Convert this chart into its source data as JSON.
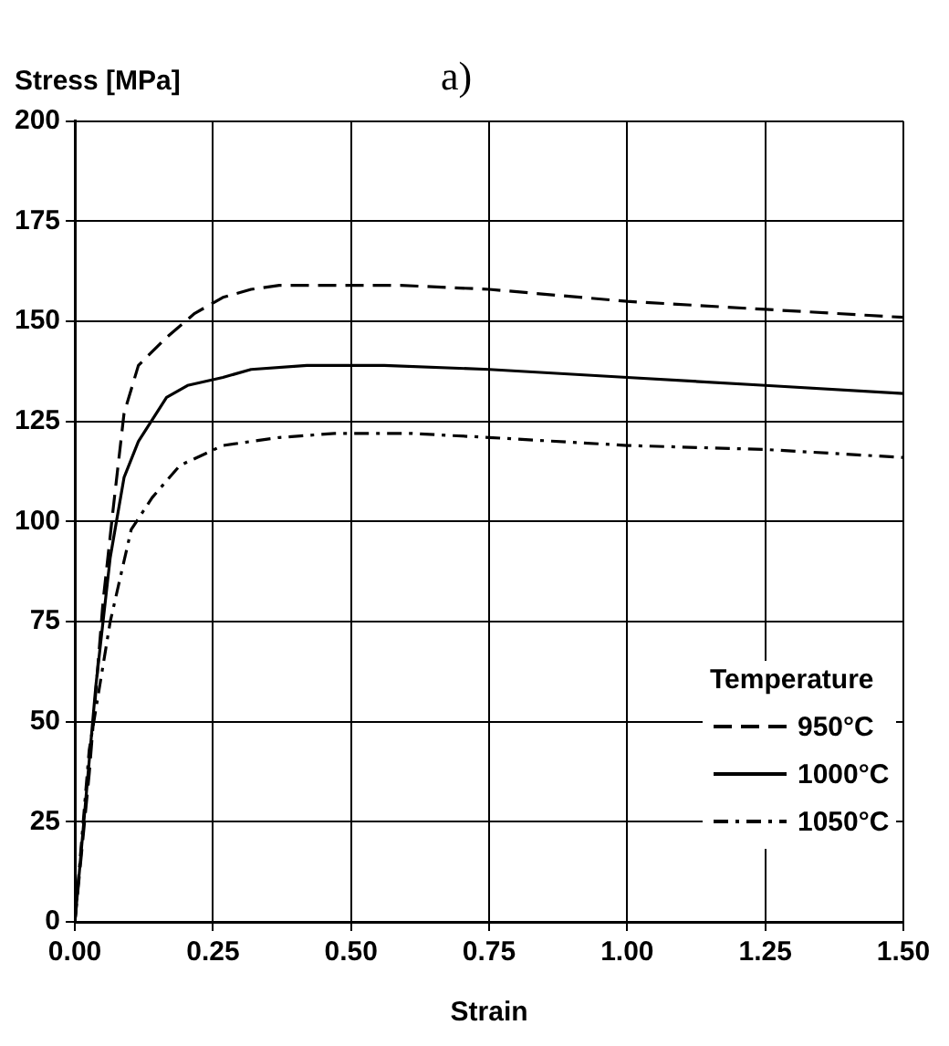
{
  "chart_data": {
    "type": "line",
    "title": "a)",
    "xlabel": "Strain",
    "ylabel": "Stress [MPa]",
    "legend_title": "Temperature",
    "legend": "bottom right",
    "grid": true,
    "marker": "none",
    "xlim": [
      0,
      1.5
    ],
    "xticks": [
      {
        "value": 0,
        "label": "0.00"
      },
      {
        "value": 0.25,
        "label": "0.25"
      },
      {
        "value": 0.5,
        "label": "0.50"
      },
      {
        "value": 0.75,
        "label": "0.75"
      },
      {
        "value": 1,
        "label": "1.00"
      },
      {
        "value": 1.25,
        "label": "1.25"
      },
      {
        "value": 1.5,
        "label": "1.50"
      }
    ],
    "ylim": [
      0,
      200
    ],
    "yticks": [
      0,
      25,
      50,
      75,
      100,
      125,
      150,
      175,
      200
    ],
    "series": [
      {
        "name": "950°C",
        "color": "#000000",
        "line_style": "dashed",
        "x": [
          0,
          0.026,
          0.051,
          0.07,
          0.089,
          0.115,
          0.166,
          0.217,
          0.268,
          0.319,
          0.37,
          0.59,
          0.75,
          1.0,
          1.25,
          1.5
        ],
        "values": [
          0,
          37,
          80,
          104,
          127,
          139,
          146,
          152,
          156,
          158,
          159,
          159,
          158,
          155,
          153,
          151
        ]
      },
      {
        "name": "1000°C",
        "color": "#000000",
        "line_style": "solid",
        "x": [
          0,
          0.013,
          0.038,
          0.064,
          0.089,
          0.115,
          0.166,
          0.204,
          0.268,
          0.319,
          0.42,
          0.56,
          0.75,
          1.0,
          1.25,
          1.5
        ],
        "values": [
          0,
          20,
          59,
          91,
          111,
          120,
          131,
          134,
          136,
          138,
          139,
          139,
          138,
          136,
          134,
          132
        ]
      },
      {
        "name": "1050°C",
        "color": "#000000",
        "line_style": "dotdash",
        "x": [
          0,
          0.026,
          0.064,
          0.102,
          0.14,
          0.19,
          0.268,
          0.37,
          0.47,
          0.61,
          0.75,
          1.0,
          1.25,
          1.5
        ],
        "values": [
          0,
          43,
          75,
          98,
          106,
          114,
          119,
          121,
          122,
          122,
          121,
          119,
          118,
          116
        ]
      }
    ]
  }
}
